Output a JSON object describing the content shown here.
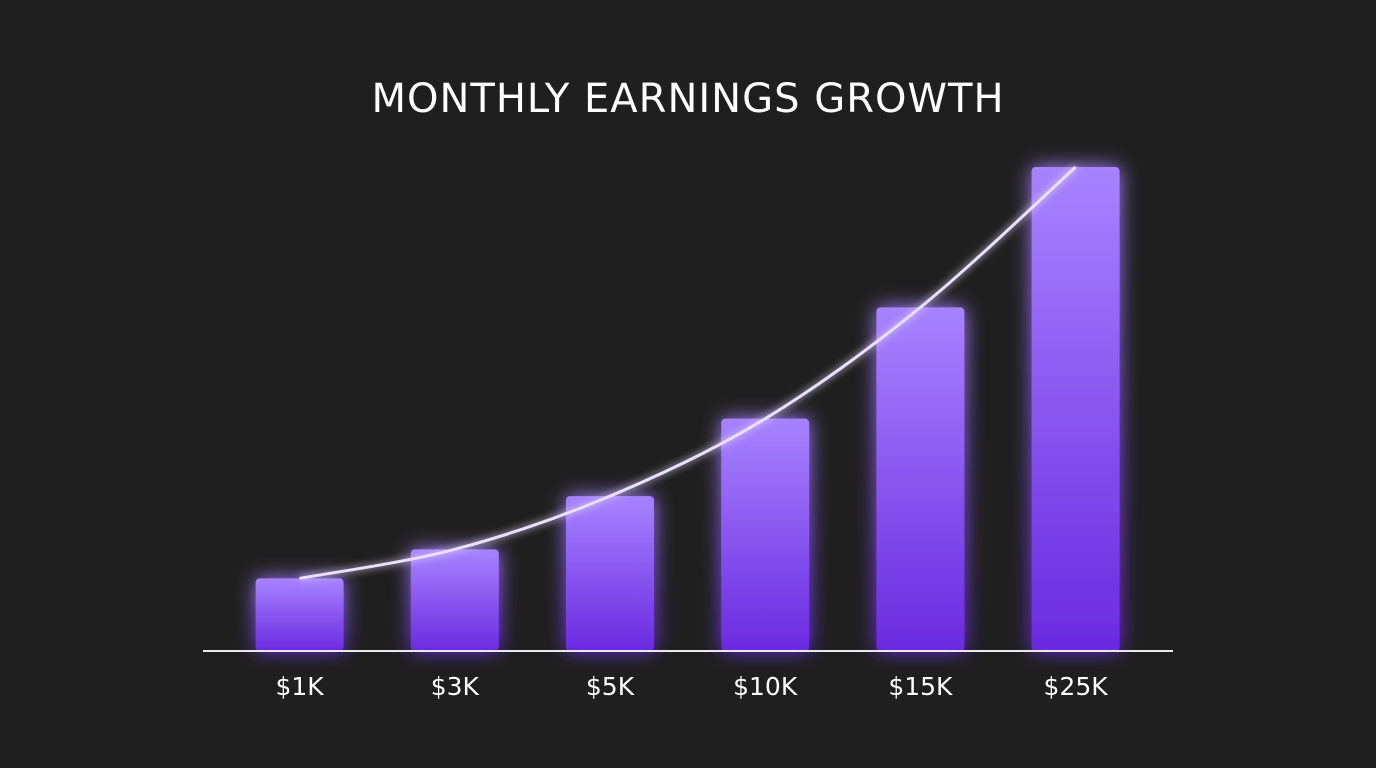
{
  "chart_data": {
    "type": "bar",
    "title": "MONTHLY EARNINGS GROWTH",
    "categories": [
      "$1K",
      "$3K",
      "$5K",
      "$10K",
      "$15K",
      "$25K"
    ],
    "values": [
      15,
      21,
      32,
      48,
      71,
      100
    ],
    "ylim": [
      0,
      100
    ],
    "color": "#8b5cf6",
    "trend_line": true
  }
}
